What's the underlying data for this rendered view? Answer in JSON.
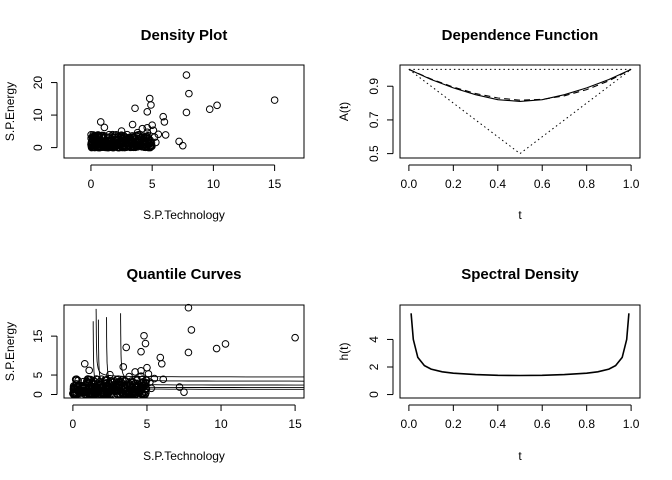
{
  "chart_data": [
    {
      "type": "scatter",
      "title": "Density Plot",
      "xlabel": "S.P.Technology",
      "ylabel": "S.P.Energy",
      "xlim": [
        -2.2,
        17.4
      ],
      "ylim": [
        -3.2,
        25.4
      ],
      "xticks": [
        0,
        5,
        10,
        15
      ],
      "yticks": [
        0,
        10,
        20
      ],
      "tick_labels_x": [
        "0",
        "5",
        "10",
        "15"
      ],
      "tick_labels_y": [
        "0",
        "10",
        "20"
      ],
      "points": [
        [
          7.8,
          22.3
        ],
        [
          8.0,
          16.6
        ],
        [
          7.8,
          10.8
        ],
        [
          9.7,
          11.8
        ],
        [
          10.3,
          13.0
        ],
        [
          15.0,
          14.6
        ],
        [
          4.8,
          15.1
        ],
        [
          4.9,
          13.1
        ],
        [
          3.6,
          12.1
        ],
        [
          4.6,
          11.0
        ],
        [
          5.9,
          9.5
        ],
        [
          6.0,
          7.9
        ],
        [
          5.0,
          6.9
        ],
        [
          4.6,
          6.1
        ],
        [
          5.1,
          5.3
        ],
        [
          4.6,
          4.7
        ],
        [
          5.5,
          4.1
        ],
        [
          5.2,
          3.2
        ],
        [
          6.1,
          3.9
        ],
        [
          5.3,
          1.6
        ],
        [
          7.2,
          1.9
        ],
        [
          7.5,
          0.6
        ],
        [
          0.8,
          7.9
        ],
        [
          1.1,
          6.2
        ],
        [
          3.4,
          7.1
        ],
        [
          4.2,
          5.8
        ],
        [
          3.8,
          4.6
        ],
        [
          2.5,
          5.1
        ]
      ],
      "dense_cluster": {
        "x_range": [
          0,
          5
        ],
        "y_range": [
          0,
          4
        ],
        "count": 300
      }
    },
    {
      "type": "line",
      "title": "Dependence Function",
      "xlabel": "t",
      "ylabel": "A(t)",
      "xlim": [
        -0.04,
        1.04
      ],
      "ylim": [
        0.474,
        1.026
      ],
      "xticks": [
        0.0,
        0.2,
        0.4,
        0.6,
        0.8,
        1.0
      ],
      "yticks": [
        0.5,
        0.7,
        0.9
      ],
      "tick_labels_x": [
        "0.0",
        "0.2",
        "0.4",
        "0.6",
        "0.8",
        "1.0"
      ],
      "tick_labels_y": [
        "0.5",
        "0.7",
        "0.9"
      ],
      "x": [
        0.0,
        0.1,
        0.2,
        0.3,
        0.4,
        0.5,
        0.6,
        0.7,
        0.8,
        0.9,
        1.0
      ],
      "series": [
        {
          "style": "solid",
          "values": [
            1.0,
            0.94,
            0.89,
            0.85,
            0.82,
            0.81,
            0.82,
            0.85,
            0.89,
            0.94,
            1.0
          ]
        },
        {
          "style": "dashed",
          "values": [
            1.0,
            0.943,
            0.895,
            0.857,
            0.83,
            0.817,
            0.822,
            0.843,
            0.88,
            0.932,
            1.0
          ]
        }
      ],
      "bounds": {
        "upper": {
          "style": "dotted",
          "x": [
            0.0,
            1.0
          ],
          "values": [
            1.0,
            1.0
          ]
        },
        "lower": {
          "style": "dotted",
          "x": [
            0.0,
            0.5,
            1.0
          ],
          "values": [
            1.0,
            0.5,
            1.0
          ]
        }
      }
    },
    {
      "type": "scatter",
      "title": "Quantile Curves",
      "xlabel": "S.P.Technology",
      "ylabel": "S.P.Energy",
      "xlim": [
        -0.6,
        15.6
      ],
      "ylim": [
        -0.9,
        23.0
      ],
      "xticks": [
        0,
        5,
        10,
        15
      ],
      "yticks": [
        0,
        5,
        15
      ],
      "tick_labels_x": [
        "0",
        "5",
        "10",
        "15"
      ],
      "tick_labels_y": [
        "0",
        "5",
        "15"
      ],
      "points": [
        [
          7.8,
          22.3
        ],
        [
          8.0,
          16.6
        ],
        [
          7.8,
          10.8
        ],
        [
          9.7,
          11.8
        ],
        [
          10.3,
          13.0
        ],
        [
          15.0,
          14.6
        ],
        [
          4.8,
          15.1
        ],
        [
          4.9,
          13.1
        ],
        [
          3.6,
          12.1
        ],
        [
          4.6,
          11.0
        ],
        [
          5.9,
          9.5
        ],
        [
          6.0,
          7.9
        ],
        [
          5.0,
          6.9
        ],
        [
          4.6,
          6.1
        ],
        [
          5.1,
          5.3
        ],
        [
          4.6,
          4.7
        ],
        [
          5.5,
          4.1
        ],
        [
          5.2,
          3.2
        ],
        [
          6.1,
          3.9
        ],
        [
          5.3,
          1.6
        ],
        [
          7.2,
          1.9
        ],
        [
          7.5,
          0.6
        ],
        [
          0.8,
          7.9
        ],
        [
          1.1,
          6.2
        ],
        [
          3.4,
          7.1
        ],
        [
          4.2,
          5.8
        ],
        [
          3.8,
          4.6
        ],
        [
          2.5,
          5.1
        ]
      ],
      "dense_cluster": {
        "x_range": [
          0,
          5
        ],
        "y_range": [
          0,
          4
        ],
        "count": 300
      },
      "quantile_curves": [
        {
          "a": 1.35,
          "b": 1.3
        },
        {
          "a": 1.7,
          "b": 1.75
        },
        {
          "a": 2.25,
          "b": 2.4
        },
        {
          "a": 3.2,
          "b": 3.4
        },
        {
          "a": 1.55,
          "b": 4.5
        }
      ]
    },
    {
      "type": "line",
      "title": "Spectral Density",
      "xlabel": "t",
      "ylabel": "h(t)",
      "xlim": [
        -0.04,
        1.04
      ],
      "ylim": [
        -0.25,
        6.5
      ],
      "xticks": [
        0.0,
        0.2,
        0.4,
        0.6,
        0.8,
        1.0
      ],
      "yticks": [
        0,
        2,
        4
      ],
      "tick_labels_x": [
        "0.0",
        "0.2",
        "0.4",
        "0.6",
        "0.8",
        "1.0"
      ],
      "tick_labels_y": [
        "0",
        "2",
        "4"
      ],
      "series": [
        {
          "x": [
            0.01,
            0.02,
            0.04,
            0.07,
            0.1,
            0.15,
            0.2,
            0.3,
            0.4,
            0.5,
            0.6,
            0.7,
            0.8,
            0.85,
            0.9,
            0.93,
            0.96,
            0.98,
            0.99
          ],
          "values": [
            5.9,
            4.0,
            2.7,
            2.1,
            1.85,
            1.65,
            1.55,
            1.45,
            1.4,
            1.38,
            1.4,
            1.45,
            1.55,
            1.65,
            1.85,
            2.1,
            2.7,
            4.0,
            5.9
          ]
        }
      ]
    }
  ]
}
